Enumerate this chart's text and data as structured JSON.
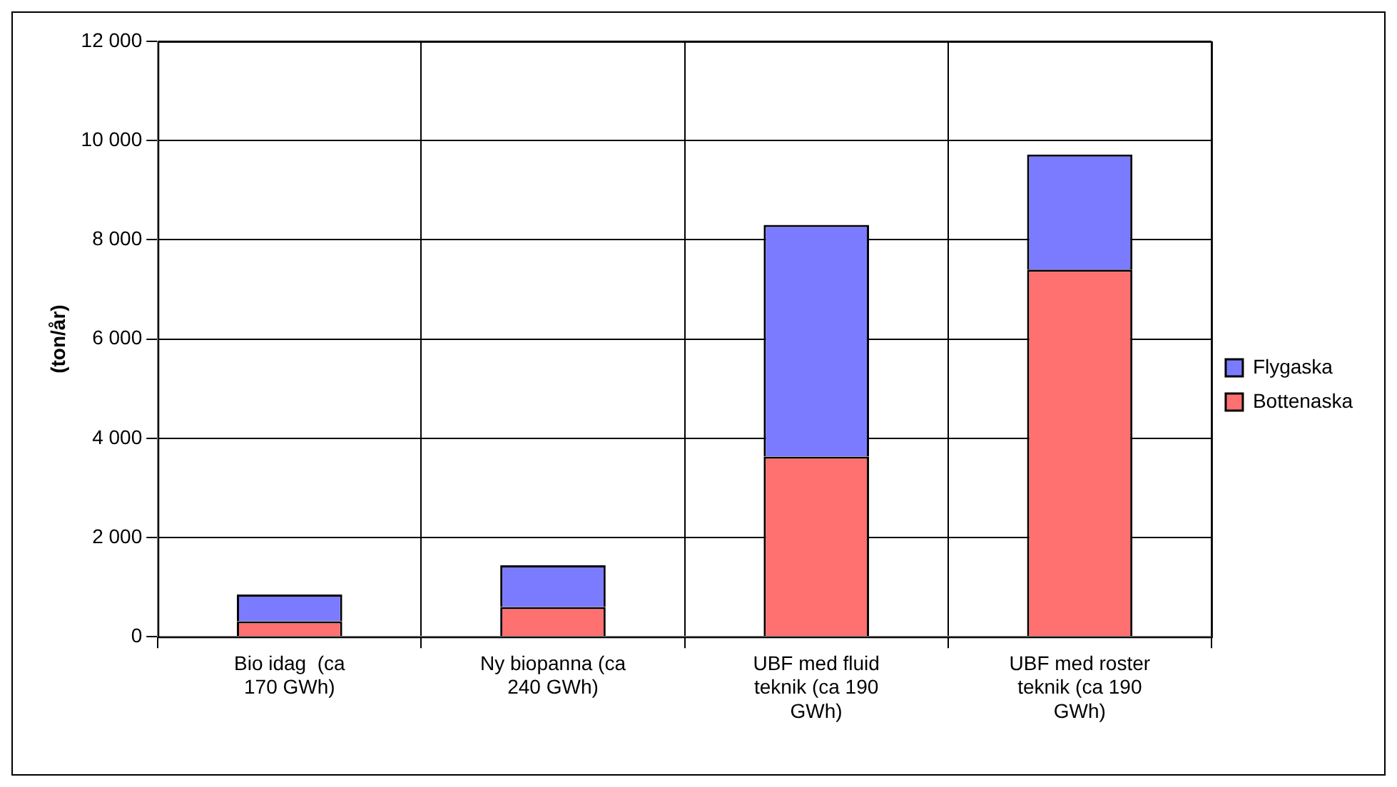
{
  "chart_data": {
    "type": "bar",
    "stacked": true,
    "ylabel": "(ton/år)",
    "categories": [
      "Bio idag  (ca 170 GWh)",
      "Ny biopanna (ca 240 GWh)",
      "UBF med fluid teknik (ca 190 GWh)",
      "UBF med roster teknik (ca 190 GWh)"
    ],
    "series": [
      {
        "name": "Bottenaska",
        "color": "#ff7070",
        "values": [
          310,
          600,
          3630,
          7400
        ]
      },
      {
        "name": "Flygaska",
        "color": "#7b7bff",
        "values": [
          540,
          840,
          4670,
          2320
        ]
      }
    ],
    "ylim": [
      0,
      12000
    ],
    "yticks": [
      0,
      {
        "value": 2000,
        "label": "2 000"
      },
      {
        "value": 4000,
        "label": "4 000"
      },
      {
        "value": 6000,
        "label": "6 000"
      },
      {
        "value": 8000,
        "label": "8 000"
      },
      {
        "value": 10000,
        "label": "10 000"
      },
      {
        "value": 12000,
        "label": "12 000"
      }
    ],
    "grid": true,
    "legend": "right"
  }
}
